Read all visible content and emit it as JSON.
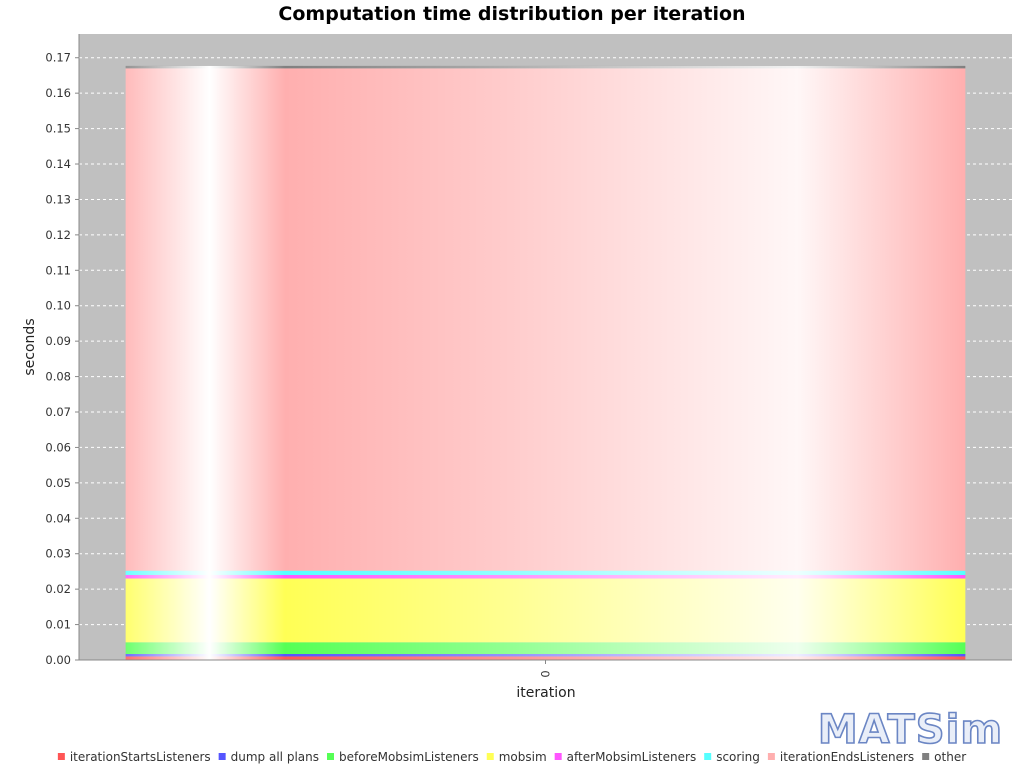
{
  "chart_data": {
    "type": "bar",
    "stacked": true,
    "title": "Computation time distribution per iteration",
    "xlabel": "iteration",
    "ylabel": "seconds",
    "categories": [
      "0"
    ],
    "ylim": [
      0,
      0.1767
    ],
    "yticks": [
      0.0,
      0.01,
      0.02,
      0.03,
      0.04,
      0.05,
      0.06,
      0.07,
      0.08,
      0.09,
      0.1,
      0.11,
      0.12,
      0.13,
      0.14,
      0.15,
      0.16,
      0.17
    ],
    "ytick_labels": [
      "0.00",
      "0.01",
      "0.02",
      "0.03",
      "0.04",
      "0.05",
      "0.06",
      "0.07",
      "0.08",
      "0.09",
      "0.10",
      "0.11",
      "0.12",
      "0.13",
      "0.14",
      "0.15",
      "0.16",
      "0.17"
    ],
    "grid": true,
    "legend_position": "bottom",
    "series": [
      {
        "name": "iterationStartsListeners",
        "color": "#ff5555",
        "values": [
          0.001
        ]
      },
      {
        "name": "dump all plans",
        "color": "#5555ff",
        "values": [
          0.0007
        ]
      },
      {
        "name": "beforeMobsimListeners",
        "color": "#55ff55",
        "values": [
          0.0033
        ]
      },
      {
        "name": "mobsim",
        "color": "#ffff55",
        "values": [
          0.018
        ]
      },
      {
        "name": "afterMobsimListeners",
        "color": "#ff55ff",
        "values": [
          0.001
        ]
      },
      {
        "name": "scoring",
        "color": "#55ffff",
        "values": [
          0.0012
        ]
      },
      {
        "name": "iterationEndsListeners",
        "color": "#ffafaf",
        "values": [
          0.1418
        ]
      },
      {
        "name": "other",
        "color": "#808080",
        "values": [
          0.0007
        ]
      }
    ]
  },
  "watermark": "MATSim"
}
